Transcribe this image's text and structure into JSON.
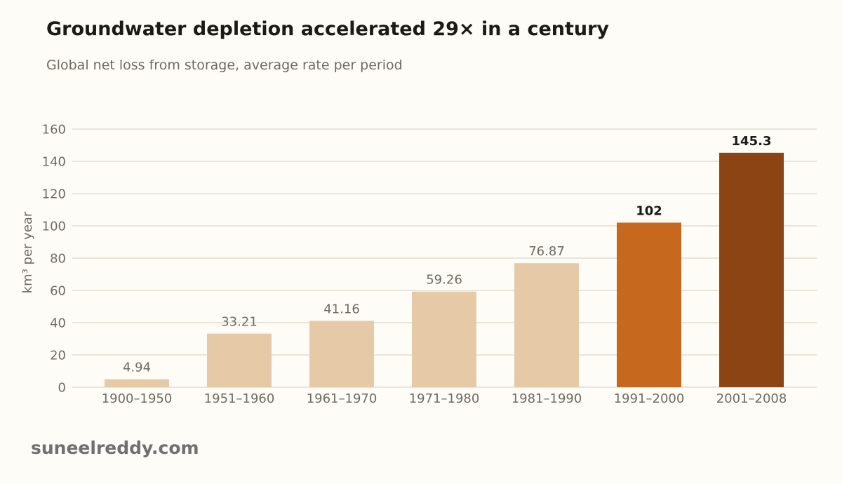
{
  "title": "Groundwater depletion accelerated 29× in a century",
  "subtitle": "Global net loss from storage, average rate per period",
  "footer": "suneelreddy.com",
  "colors": {
    "background": "#fefcf7",
    "muted_bar": "#e6caa8",
    "highlight_bar": "#c6681e",
    "dark_bar": "#8c4414",
    "gridline": "#e2ddd0",
    "muted_text": "#6e6b61",
    "strong_text": "#1a1a16"
  },
  "chart_data": {
    "type": "bar",
    "categories": [
      "1900–1950",
      "1951–1960",
      "1961–1970",
      "1971–1980",
      "1981–1990",
      "1991–2000",
      "2001–2008"
    ],
    "values": [
      4.94,
      33.21,
      41.16,
      59.26,
      76.87,
      102,
      145.3
    ],
    "value_labels": [
      "4.94",
      "33.21",
      "41.16",
      "59.26",
      "76.87",
      "102",
      "145.3"
    ],
    "ylabel": "km³ per year",
    "xlabel": "",
    "ylim": [
      0,
      160
    ],
    "yticks": [
      0,
      20,
      40,
      60,
      80,
      100,
      120,
      140,
      160
    ],
    "grid": "horizontal",
    "bar_emphasis": [
      "muted",
      "muted",
      "muted",
      "muted",
      "muted",
      "highlight",
      "dark"
    ]
  }
}
